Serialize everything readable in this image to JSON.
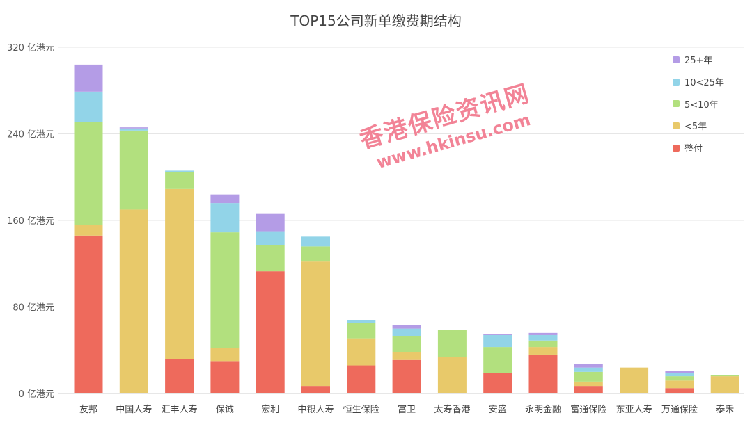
{
  "chart_data": {
    "type": "bar",
    "stacked": true,
    "title": "TOP15公司新单缴费期结构",
    "categories": [
      "友邦",
      "中国人寿",
      "汇丰人寿",
      "保诚",
      "宏利",
      "中银人寿",
      "恒生保险",
      "富卫",
      "太寿香港",
      "安盛",
      "永明金融",
      "富通保险",
      "东亚人寿",
      "万通保险",
      "泰禾"
    ],
    "series": [
      {
        "name": "整付",
        "color": "#ee6a5c",
        "values": [
          146,
          0,
          32,
          30,
          113,
          7,
          26,
          31,
          0,
          19,
          36,
          7,
          0,
          5,
          0
        ]
      },
      {
        "name": "<5年",
        "color": "#e8c96a",
        "values": [
          10,
          170,
          157,
          12,
          0,
          115,
          25,
          7,
          34,
          0,
          7,
          4,
          24,
          7,
          16
        ]
      },
      {
        "name": "5<10年",
        "color": "#b2e07e",
        "values": [
          95,
          73,
          16,
          107,
          24,
          14,
          14,
          15,
          25,
          24,
          6,
          9,
          0,
          4,
          1
        ]
      },
      {
        "name": "10<25年",
        "color": "#92d4e8",
        "values": [
          28,
          2,
          1,
          27,
          13,
          9,
          3,
          7,
          0,
          11,
          5,
          4,
          0,
          3,
          0
        ]
      },
      {
        "name": "25+年",
        "color": "#b49ce6",
        "values": [
          25,
          1,
          0,
          8,
          16,
          0,
          0,
          3,
          0,
          1,
          2,
          3,
          0,
          2,
          0
        ]
      }
    ],
    "ylim": [
      0,
      320
    ],
    "yticks": [
      {
        "value": 0,
        "label": "0 亿港元"
      },
      {
        "value": 80,
        "label": "80 亿港元"
      },
      {
        "value": 160,
        "label": "160 亿港元"
      },
      {
        "value": 240,
        "label": "240 亿港元"
      },
      {
        "value": 320,
        "label": "320 亿港元"
      }
    ],
    "grid": true,
    "legend_position": "top-right",
    "legend_order": [
      "25+年",
      "10<25年",
      "5<10年",
      "<5年",
      "整付"
    ]
  },
  "watermark": {
    "line1": "香港保险资讯网",
    "line2": "www.hkinsu.com"
  }
}
